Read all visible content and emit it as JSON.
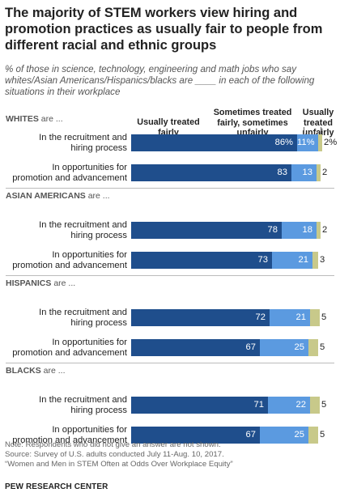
{
  "title": "The majority of STEM workers view hiring and promotion practices as usually fair to people from different  racial and ethnic groups",
  "subtitle": "% of those in science, technology, engineering and math jobs who say whites/Asian Americans/Hispanics/blacks are ____ in each of the following situations in their workplace",
  "legend": {
    "fair": "Usually treated fairly",
    "sometimes": "Sometimes treated fairly, sometimes unfairly",
    "unfair": "Usually treated unfairly"
  },
  "colors": {
    "fair": "#1f4e8c",
    "sometimes": "#5b9ae0",
    "unfair": "#c8c98a",
    "separator": "#bcbcbc"
  },
  "chart_data": {
    "type": "bar",
    "orientation": "horizontal",
    "stacked": true,
    "xlim": [
      0,
      100
    ],
    "series_names": [
      "Usually treated fairly",
      "Sometimes treated fairly, sometimes unfairly",
      "Usually treated unfairly"
    ],
    "groups": [
      {
        "header_bold": "WHITES",
        "header_rest": " are ...",
        "rows": [
          {
            "label1": "In the recruitment and",
            "label2": "hiring process",
            "values": [
              86,
              11,
              2
            ],
            "value_labels": [
              "86%",
              "11%",
              "2%"
            ]
          },
          {
            "label1": "In opportunities for",
            "label2": "promotion and advancement",
            "values": [
              83,
              13,
              2
            ],
            "value_labels": [
              "83",
              "13",
              "2"
            ]
          }
        ]
      },
      {
        "header_bold": "ASIAN AMERICANS",
        "header_rest": " are ...",
        "rows": [
          {
            "label1": "In the recruitment and",
            "label2": "hiring process",
            "values": [
              78,
              18,
              2
            ],
            "value_labels": [
              "78",
              "18",
              "2"
            ]
          },
          {
            "label1": "In opportunities for",
            "label2": "promotion and advancement",
            "values": [
              73,
              21,
              3
            ],
            "value_labels": [
              "73",
              "21",
              "3"
            ]
          }
        ]
      },
      {
        "header_bold": "HISPANICS",
        "header_rest": " are ...",
        "rows": [
          {
            "label1": "In the recruitment and",
            "label2": "hiring process",
            "values": [
              72,
              21,
              5
            ],
            "value_labels": [
              "72",
              "21",
              "5"
            ]
          },
          {
            "label1": "In opportunities for",
            "label2": "promotion and advancement",
            "values": [
              67,
              25,
              5
            ],
            "value_labels": [
              "67",
              "25",
              "5"
            ]
          }
        ]
      },
      {
        "header_bold": "BLACKS",
        "header_rest": " are ...",
        "rows": [
          {
            "label1": "In the recruitment and",
            "label2": "hiring process",
            "values": [
              71,
              22,
              5
            ],
            "value_labels": [
              "71",
              "22",
              "5"
            ]
          },
          {
            "label1": "In opportunities for",
            "label2": "promotion and advancement",
            "values": [
              67,
              25,
              5
            ],
            "value_labels": [
              "67",
              "25",
              "5"
            ]
          }
        ]
      }
    ]
  },
  "footer": {
    "note": "Note: Respondents who did not give an answer are not shown.",
    "source": "Source: Survey of U.S. adults conducted July 11-Aug. 10, 2017.",
    "report": "“Women and Men in STEM Often at Odds Over Workplace Equity”",
    "org": "PEW RESEARCH CENTER"
  }
}
